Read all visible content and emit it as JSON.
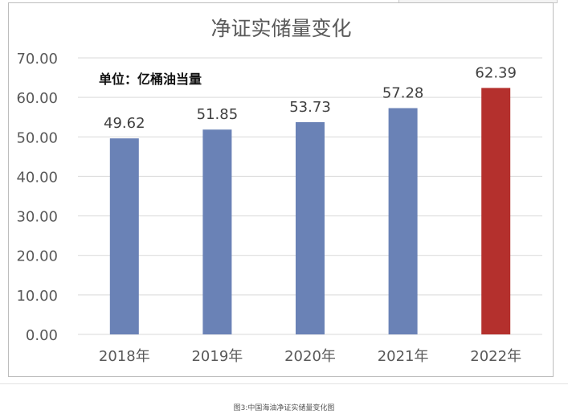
{
  "chart_data": {
    "type": "bar",
    "title": "净证实储量变化",
    "unit_note": "单位：亿桶油当量",
    "categories": [
      "2018年",
      "2019年",
      "2020年",
      "2021年",
      "2022年"
    ],
    "values": [
      49.62,
      51.85,
      53.73,
      57.28,
      62.39
    ],
    "value_labels": [
      "49.62",
      "51.85",
      "53.73",
      "57.28",
      "62.39"
    ],
    "ylim": [
      0,
      70
    ],
    "yticks": [
      "0.00",
      "10.00",
      "20.00",
      "30.00",
      "40.00",
      "50.00",
      "60.00",
      "70.00"
    ],
    "grid": true,
    "legend": "none",
    "colors": {
      "default": "#6a82b6",
      "highlight": "#b4302d",
      "grid": "#d9d9d9"
    },
    "highlight_index": 4
  },
  "caption": "图3:中国海油净证实储量变化图"
}
